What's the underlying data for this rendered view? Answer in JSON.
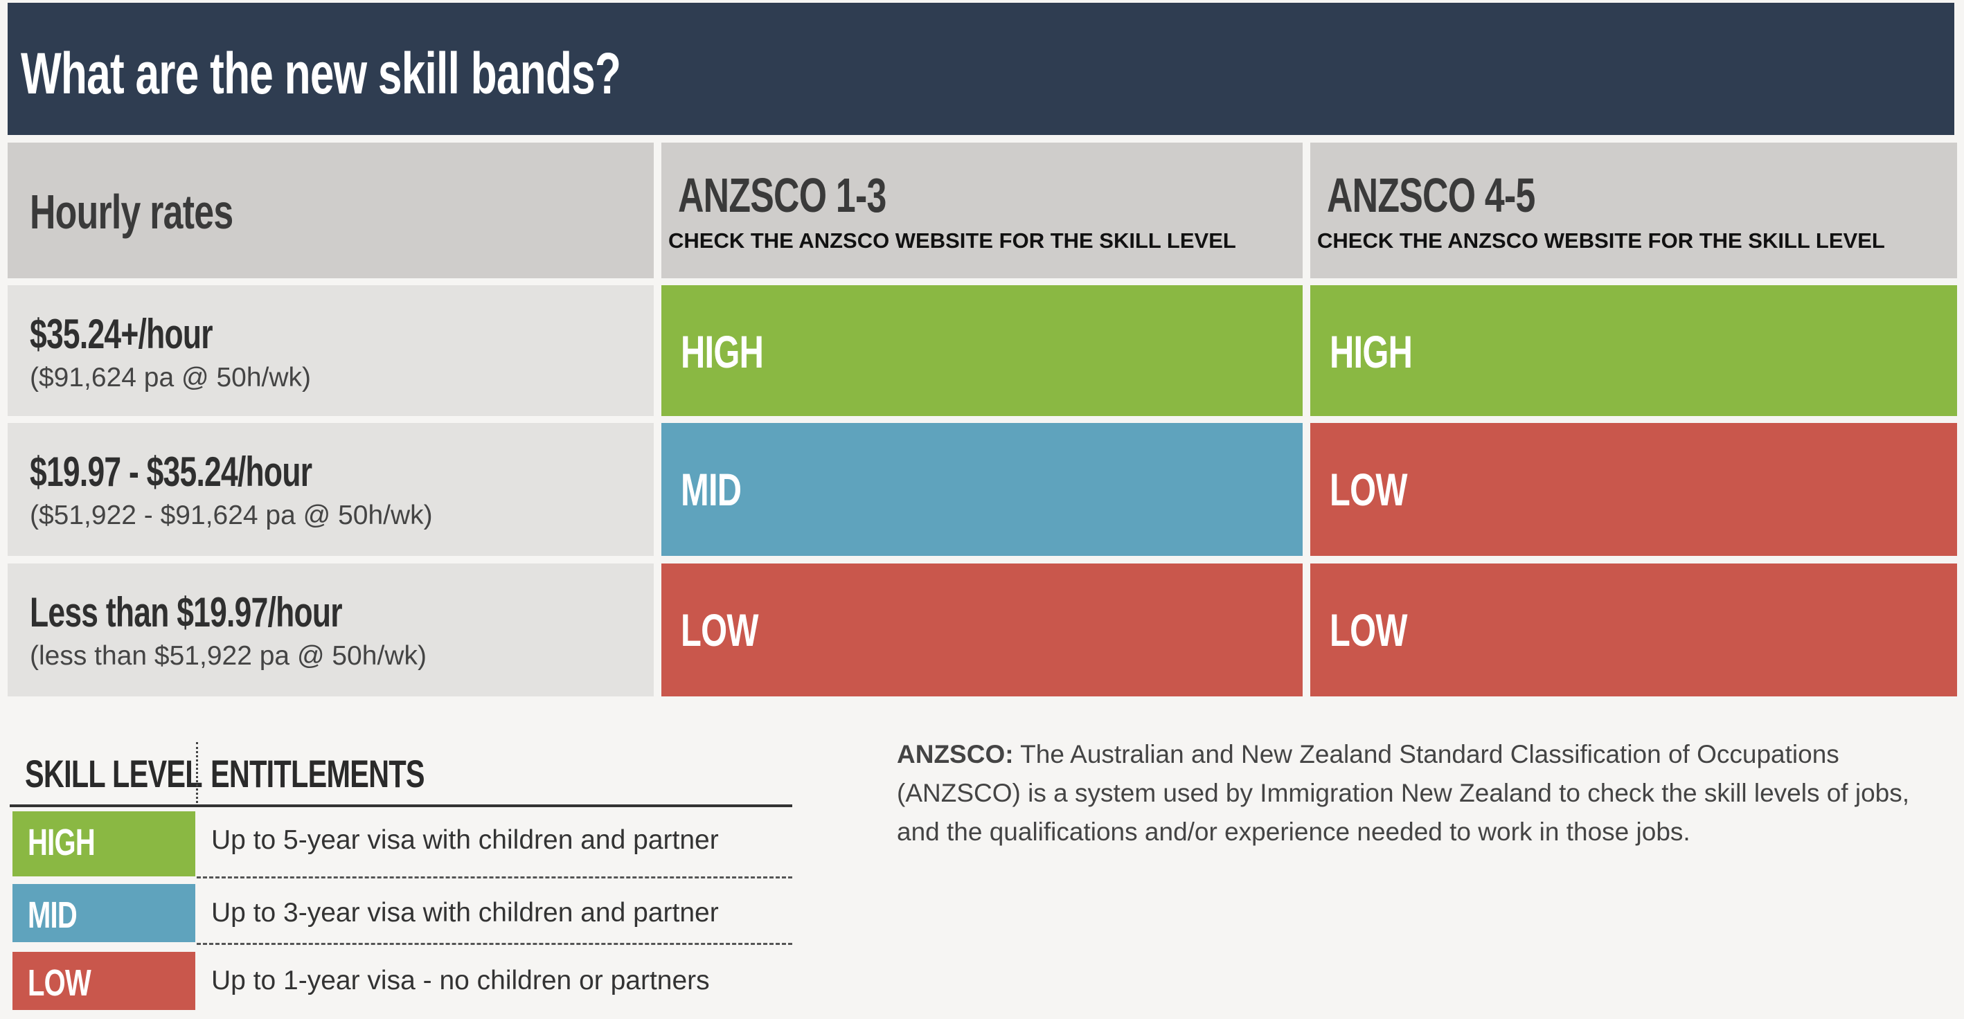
{
  "title": "What are the new skill bands?",
  "table": {
    "header": {
      "label": "Hourly rates",
      "columns": [
        {
          "title": "ANZSCO 1-3",
          "note": "CHECK THE ANZSCO WEBSITE FOR THE SKILL LEVEL"
        },
        {
          "title": "ANZSCO 4-5",
          "note": "CHECK THE ANZSCO WEBSITE FOR THE SKILL LEVEL"
        }
      ]
    },
    "rows": [
      {
        "rate": "$35.24+/hour",
        "annual": "($91,624 pa @ 50h/wk)",
        "cells": [
          "HIGH",
          "HIGH"
        ]
      },
      {
        "rate": "$19.97 - $35.24/hour",
        "annual": "($51,922 - $91,624 pa @ 50h/wk)",
        "cells": [
          "MID",
          "LOW"
        ]
      },
      {
        "rate": "Less than $19.97/hour",
        "annual": "(less than $51,922 pa @ 50h/wk)",
        "cells": [
          "LOW",
          "LOW"
        ]
      }
    ]
  },
  "legend": {
    "headers": [
      "SKILL LEVEL",
      "ENTITLEMENTS"
    ],
    "rows": [
      {
        "level": "HIGH",
        "color": "#8ab843",
        "text": "Up to 5-year visa with children and partner"
      },
      {
        "level": "MID",
        "color": "#5fa3bd",
        "text": "Up to 3-year visa with children and partner"
      },
      {
        "level": "LOW",
        "color": "#c9574c",
        "text": "Up to 1-year visa - no children or partners"
      }
    ]
  },
  "note": {
    "term": "ANZSCO:",
    "text": "The Australian and New Zealand Standard Classification of Occupations (ANZSCO) is a system used by Immigration New Zealand to check the skill levels of jobs, and the qualifications and/or experience needed to work in those jobs."
  }
}
